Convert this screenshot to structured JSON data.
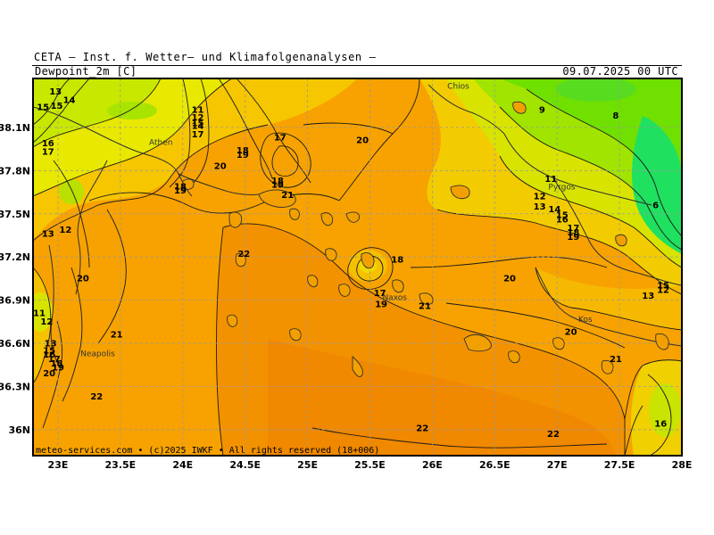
{
  "header": {
    "source": "CETA — Inst. f. Wetter— und Klimafolgenanalysen —",
    "parameter": "Dewpoint_2m [C]",
    "valid_time": "09.07.2025 00 UTC"
  },
  "footer": {
    "credit": "meteo-services.com • (c)2025 IWKF • All rights reserved (18+006)"
  },
  "axes": {
    "lat_ticks": [
      "38.1N",
      "37.8N",
      "37.5N",
      "37.2N",
      "36.9N",
      "36.6N",
      "36.3N",
      "36N"
    ],
    "lon_ticks": [
      "23E",
      "23.5E",
      "24E",
      "24.5E",
      "25E",
      "25.5E",
      "26E",
      "26.5E",
      "27E",
      "27.5E",
      "28E"
    ]
  },
  "places": [
    {
      "name": "Athen",
      "lon": 23.73,
      "lat": 37.98
    },
    {
      "name": "Chios",
      "lon": 26.12,
      "lat": 38.37
    },
    {
      "name": "Pyrgos",
      "lon": 26.93,
      "lat": 37.67
    },
    {
      "name": "Naxos",
      "lon": 25.6,
      "lat": 36.9
    },
    {
      "name": "Kos",
      "lon": 27.17,
      "lat": 36.75
    },
    {
      "name": "Neapolis",
      "lon": 23.18,
      "lat": 36.51
    }
  ],
  "contour_labels": [
    {
      "text": "13",
      "lon": 22.98,
      "lat": 38.33
    },
    {
      "text": "14",
      "lon": 23.09,
      "lat": 38.27
    },
    {
      "text": "15",
      "lon": 22.88,
      "lat": 38.22
    },
    {
      "text": "15",
      "lon": 22.99,
      "lat": 38.23
    },
    {
      "text": "16",
      "lon": 22.92,
      "lat": 37.97
    },
    {
      "text": "17",
      "lon": 22.92,
      "lat": 37.91
    },
    {
      "text": "11",
      "lon": 24.12,
      "lat": 38.2
    },
    {
      "text": "12",
      "lon": 24.12,
      "lat": 38.15
    },
    {
      "text": "14",
      "lon": 24.12,
      "lat": 38.09
    },
    {
      "text": "15",
      "lon": 24.12,
      "lat": 38.11
    },
    {
      "text": "17",
      "lon": 24.12,
      "lat": 38.03
    },
    {
      "text": "17",
      "lon": 24.78,
      "lat": 38.01
    },
    {
      "text": "18",
      "lon": 24.48,
      "lat": 37.92
    },
    {
      "text": "19",
      "lon": 24.48,
      "lat": 37.89
    },
    {
      "text": "20",
      "lon": 25.44,
      "lat": 37.99
    },
    {
      "text": "20",
      "lon": 24.3,
      "lat": 37.81
    },
    {
      "text": "18",
      "lon": 23.98,
      "lat": 37.67
    },
    {
      "text": "19",
      "lon": 23.98,
      "lat": 37.64
    },
    {
      "text": "18",
      "lon": 24.76,
      "lat": 37.71
    },
    {
      "text": "19",
      "lon": 24.76,
      "lat": 37.68
    },
    {
      "text": "21",
      "lon": 24.84,
      "lat": 37.61
    },
    {
      "text": "22",
      "lon": 24.49,
      "lat": 37.2
    },
    {
      "text": "13",
      "lon": 22.92,
      "lat": 37.34
    },
    {
      "text": "12",
      "lon": 23.06,
      "lat": 37.37
    },
    {
      "text": "20",
      "lon": 23.2,
      "lat": 37.03
    },
    {
      "text": "11",
      "lon": 22.85,
      "lat": 36.79
    },
    {
      "text": "12",
      "lon": 22.91,
      "lat": 36.73
    },
    {
      "text": "21",
      "lon": 23.47,
      "lat": 36.64
    },
    {
      "text": "13",
      "lon": 22.94,
      "lat": 36.58
    },
    {
      "text": "15",
      "lon": 22.93,
      "lat": 36.53
    },
    {
      "text": "16",
      "lon": 22.93,
      "lat": 36.5
    },
    {
      "text": "17",
      "lon": 22.97,
      "lat": 36.47
    },
    {
      "text": "18",
      "lon": 22.99,
      "lat": 36.44
    },
    {
      "text": "19",
      "lon": 23.0,
      "lat": 36.41
    },
    {
      "text": "20",
      "lon": 22.93,
      "lat": 36.37
    },
    {
      "text": "22",
      "lon": 23.31,
      "lat": 36.21
    },
    {
      "text": "18",
      "lon": 25.72,
      "lat": 37.16
    },
    {
      "text": "17",
      "lon": 25.58,
      "lat": 36.93
    },
    {
      "text": "19",
      "lon": 25.59,
      "lat": 36.85
    },
    {
      "text": "21",
      "lon": 25.94,
      "lat": 36.84
    },
    {
      "text": "20",
      "lon": 26.62,
      "lat": 37.03
    },
    {
      "text": "9",
      "lon": 26.88,
      "lat": 38.2
    },
    {
      "text": "8",
      "lon": 27.47,
      "lat": 38.16
    },
    {
      "text": "11",
      "lon": 26.95,
      "lat": 37.72
    },
    {
      "text": "12",
      "lon": 26.86,
      "lat": 37.6
    },
    {
      "text": "13",
      "lon": 26.86,
      "lat": 37.53
    },
    {
      "text": "14",
      "lon": 26.98,
      "lat": 37.51
    },
    {
      "text": "15",
      "lon": 27.04,
      "lat": 37.47
    },
    {
      "text": "16",
      "lon": 27.04,
      "lat": 37.44
    },
    {
      "text": "17",
      "lon": 27.13,
      "lat": 37.38
    },
    {
      "text": "18",
      "lon": 27.13,
      "lat": 37.35
    },
    {
      "text": "19",
      "lon": 27.13,
      "lat": 37.32
    },
    {
      "text": "6",
      "lon": 27.79,
      "lat": 37.54
    },
    {
      "text": "15",
      "lon": 27.85,
      "lat": 36.98
    },
    {
      "text": "12",
      "lon": 27.85,
      "lat": 36.95
    },
    {
      "text": "13",
      "lon": 27.73,
      "lat": 36.91
    },
    {
      "text": "20",
      "lon": 27.11,
      "lat": 36.66
    },
    {
      "text": "21",
      "lon": 27.47,
      "lat": 36.47
    },
    {
      "text": "16",
      "lon": 27.83,
      "lat": 36.02
    },
    {
      "text": "22",
      "lon": 25.92,
      "lat": 35.99
    },
    {
      "text": "22",
      "lon": 26.97,
      "lat": 35.95
    }
  ],
  "colors": {
    "lowest": "#00e060",
    "low": "#88e800",
    "mid": "#f0f000",
    "high": "#ffa500",
    "highest": "#ff8800",
    "contour": "#1a1a1a",
    "grid": "#9a9a9a"
  }
}
